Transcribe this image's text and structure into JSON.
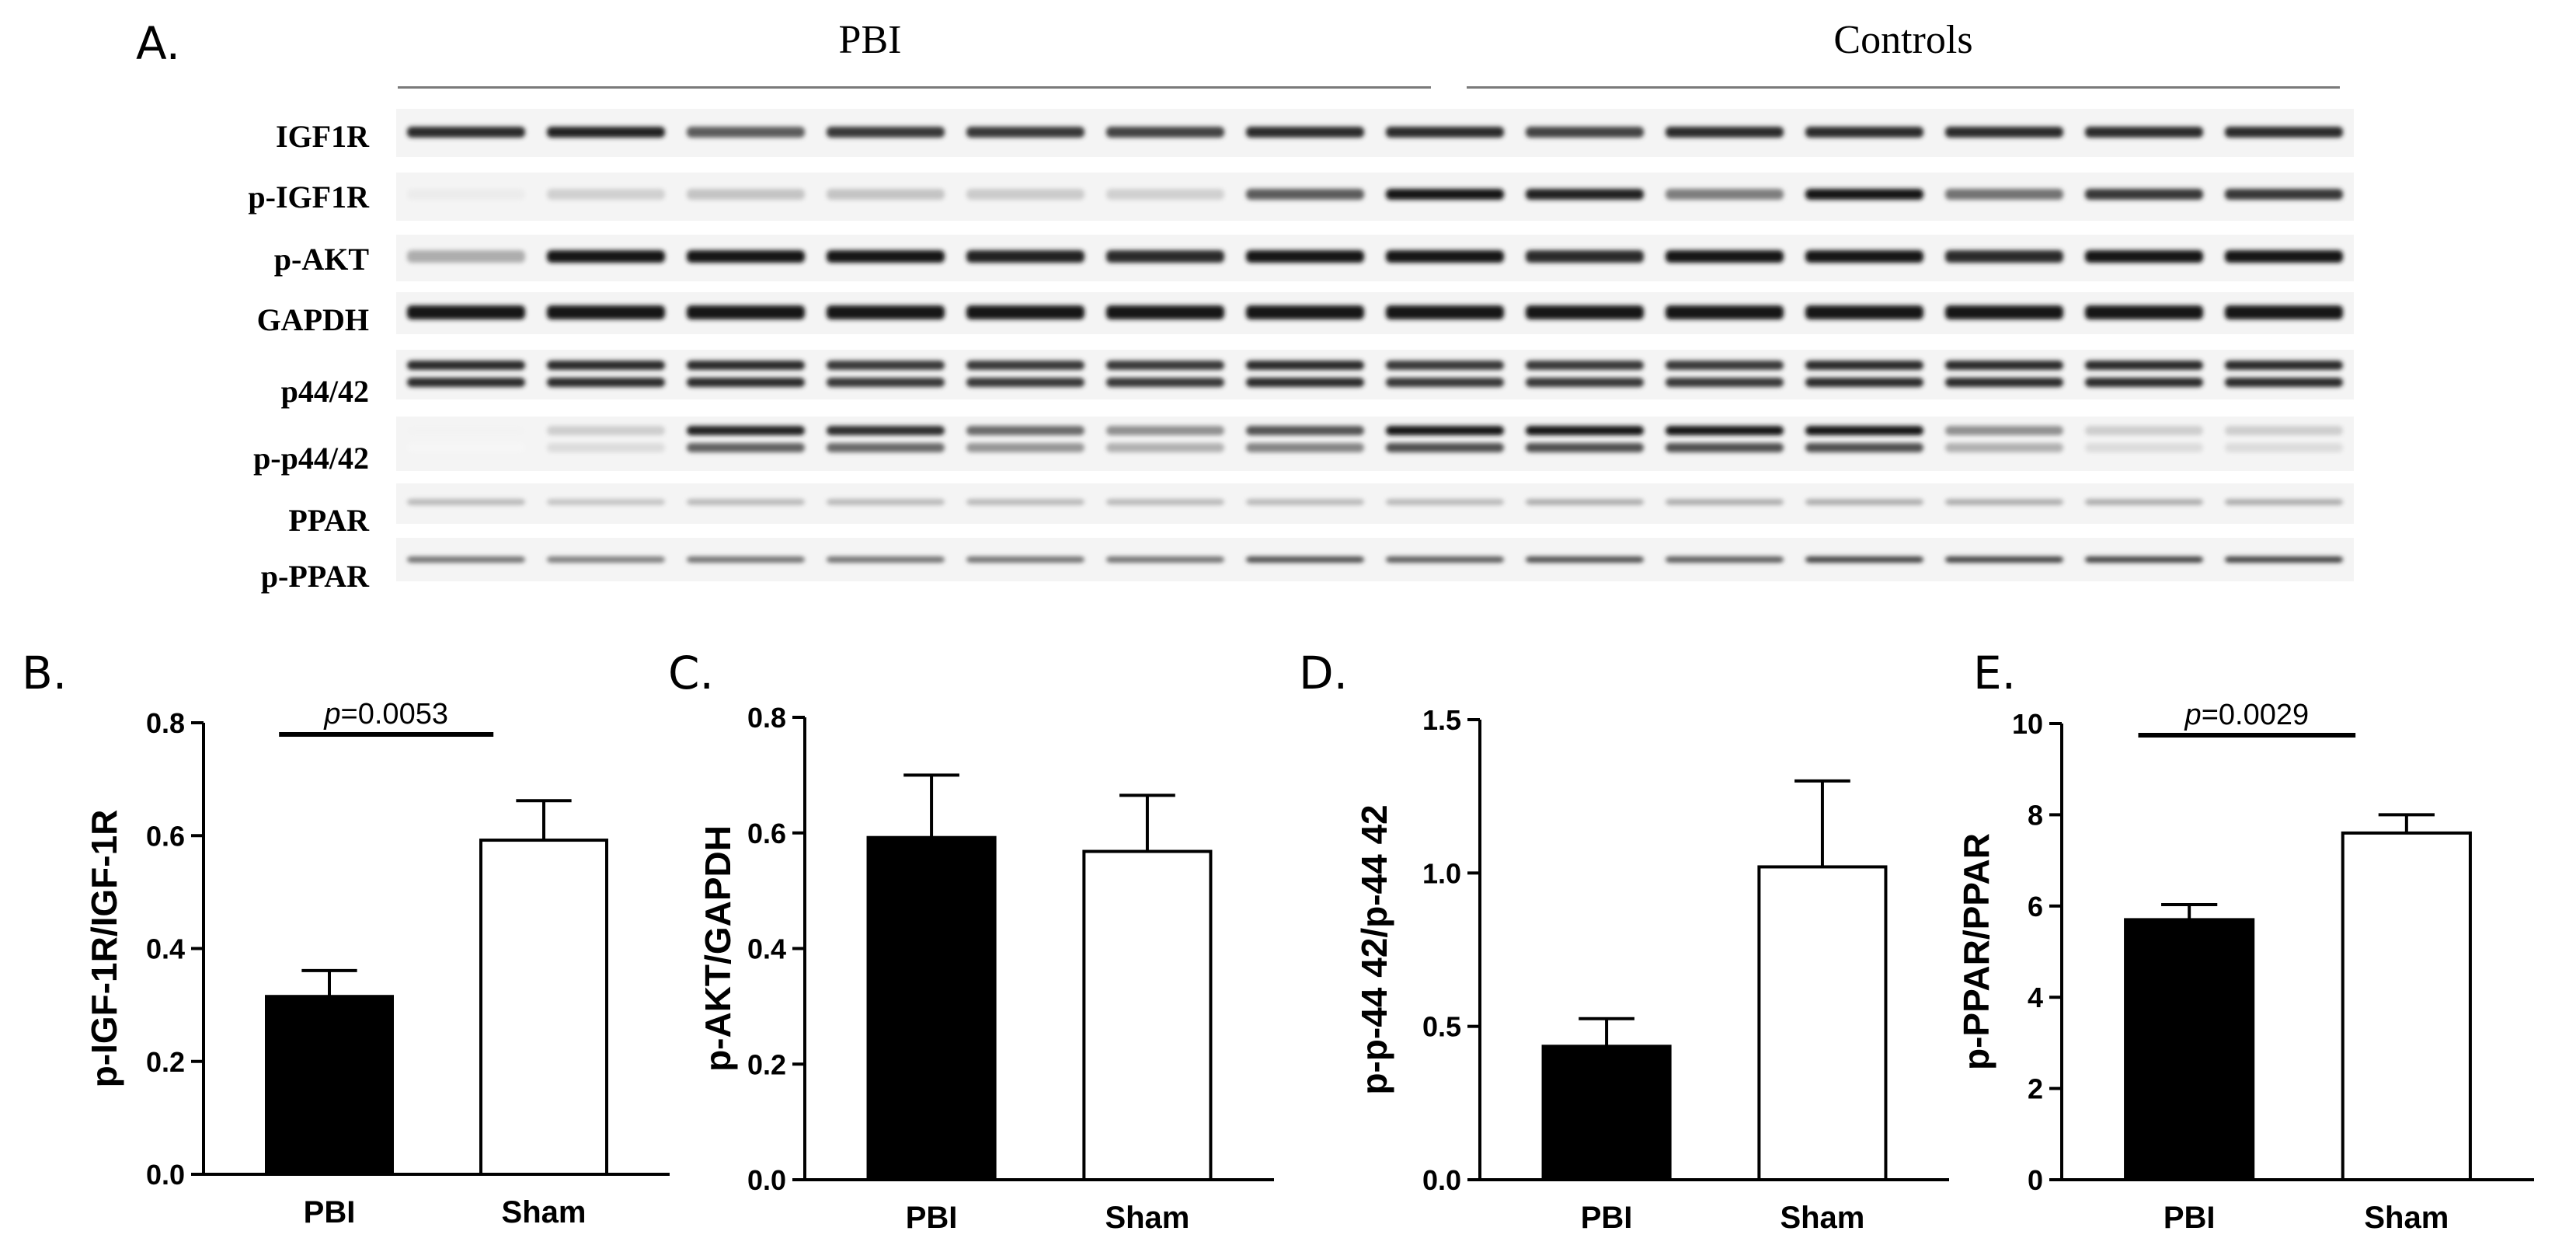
{
  "figure": {
    "panel_a": {
      "letter": "A.",
      "groups": [
        "PBI",
        "Controls"
      ],
      "bands": [
        "IGF1R",
        "p-IGF1R",
        "p-AKT",
        "GAPDH",
        "p44/42",
        "p-p44/42",
        "PPAR",
        "p-PPAR"
      ],
      "lane_count": 14
    },
    "colors": {
      "pbi_bar": "#000000",
      "sham_bar": "#ffffff",
      "axis": "#000000"
    }
  },
  "chart_data": [
    {
      "panel": "B.",
      "type": "bar",
      "categories": [
        "PBI",
        "Sham"
      ],
      "values": [
        0.315,
        0.592
      ],
      "errors": [
        0.046,
        0.07
      ],
      "ylabel": "p-IGF-1R/IGF-1R",
      "ylim": [
        0,
        0.8
      ],
      "yticks": [
        "0.0",
        "0.2",
        "0.4",
        "0.6",
        "0.8"
      ],
      "significance": {
        "p_symbol": "p",
        "p_value": "=0.0053"
      },
      "grid": false
    },
    {
      "panel": "C.",
      "type": "bar",
      "categories": [
        "PBI",
        "Sham"
      ],
      "values": [
        0.592,
        0.568
      ],
      "errors": [
        0.108,
        0.097
      ],
      "ylabel": "p-AKT/GAPDH",
      "ylim": [
        0,
        0.8
      ],
      "yticks": [
        "0.0",
        "0.2",
        "0.4",
        "0.6",
        "0.8"
      ],
      "grid": false
    },
    {
      "panel": "D.",
      "type": "bar",
      "categories": [
        "PBI",
        "Sham"
      ],
      "values": [
        0.435,
        1.02
      ],
      "errors": [
        0.09,
        0.28
      ],
      "ylabel": "p-p-44 42/p-44 42",
      "ylim": [
        0,
        1.5
      ],
      "yticks": [
        "0.0",
        "0.5",
        "1.0",
        "1.5"
      ],
      "grid": false
    },
    {
      "panel": "E.",
      "type": "bar",
      "categories": [
        "PBI",
        "Sham"
      ],
      "values": [
        5.7,
        7.6
      ],
      "errors": [
        0.33,
        0.4
      ],
      "ylabel": "p-PPAR/PPAR",
      "ylim": [
        0,
        10
      ],
      "yticks": [
        "0",
        "2",
        "4",
        "6",
        "8",
        "10"
      ],
      "significance": {
        "p_symbol": "p",
        "p_value": "=0.0029"
      },
      "grid": false
    }
  ]
}
